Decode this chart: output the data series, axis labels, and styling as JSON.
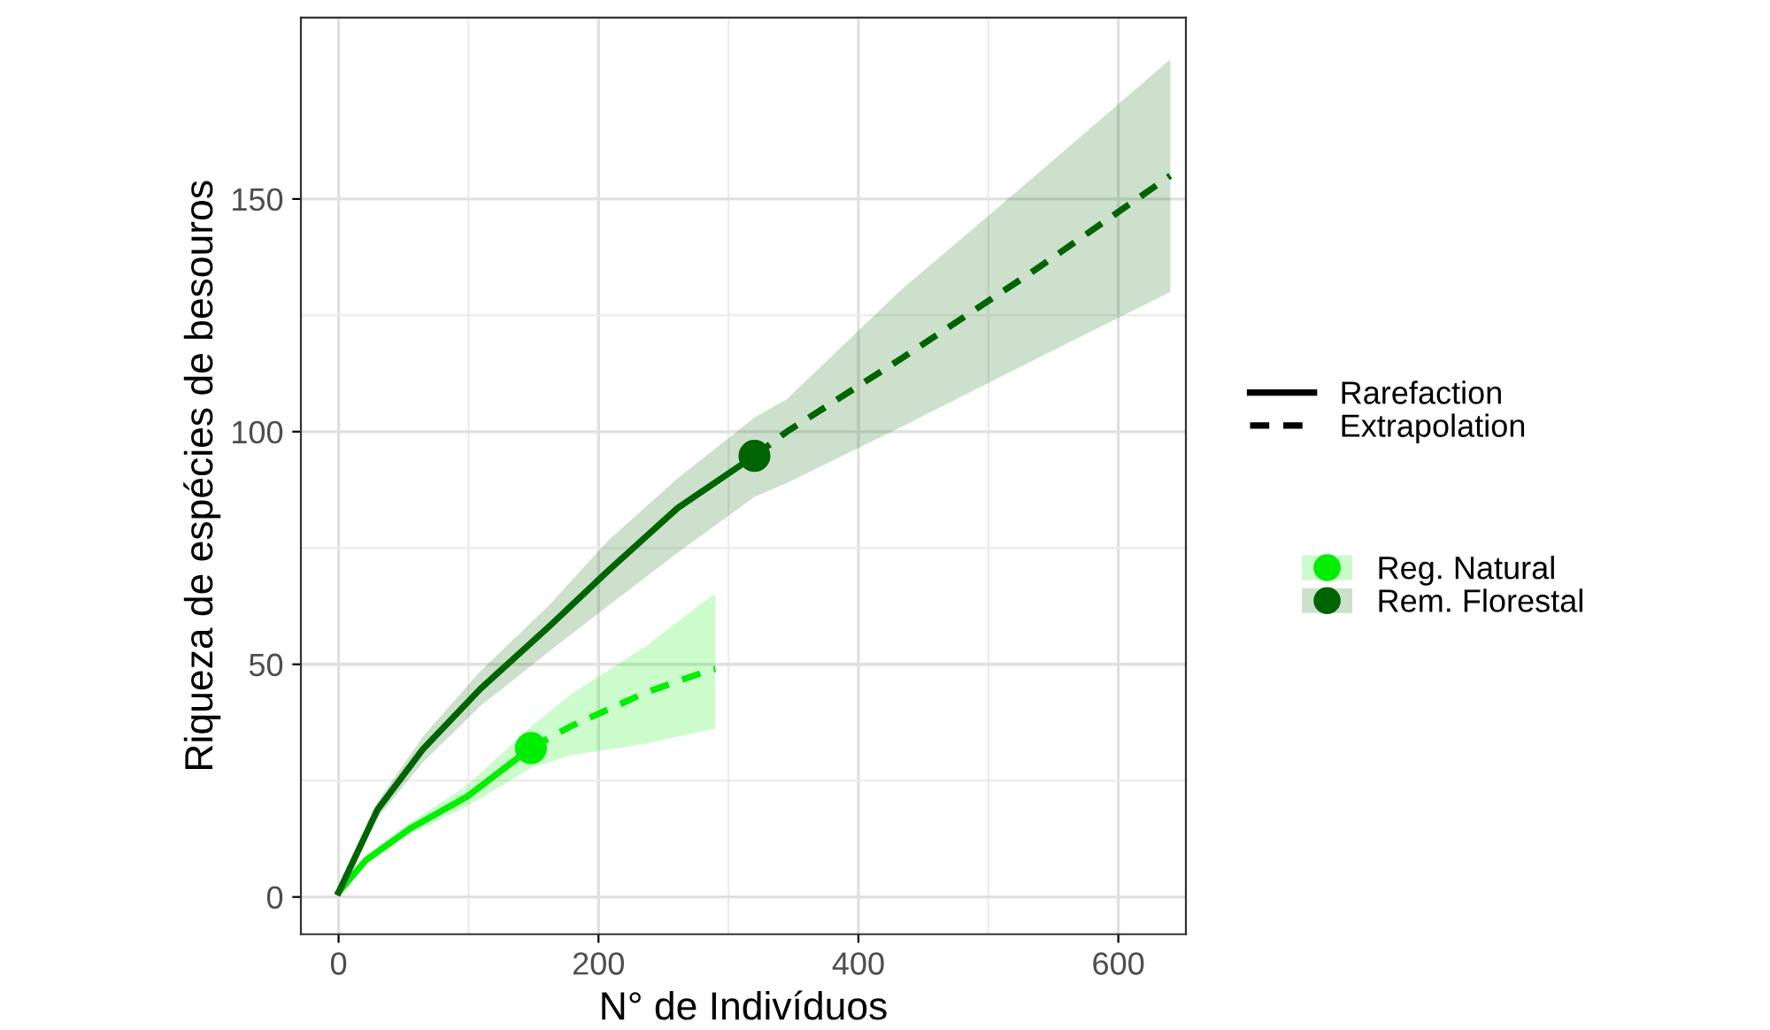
{
  "chart_data": {
    "type": "line",
    "xlabel": "N° de Indivíduos",
    "ylabel": "Riqueza de espécies de besouros",
    "xlim": [
      -29,
      652
    ],
    "ylim": [
      -8,
      189
    ],
    "xticks": [
      0,
      200,
      400,
      600
    ],
    "yticks": [
      0,
      50,
      100,
      150
    ],
    "grid": true,
    "legend": "right",
    "series": [
      {
        "name": "Rarefaction",
        "line_style": "solid",
        "color": "#000000"
      },
      {
        "name": "Extrapolation",
        "line_style": "dashed",
        "color": "#000000"
      },
      {
        "name": "Reg. Natural",
        "line_style": "solid",
        "color": "#00ee00",
        "x": [
          0,
          21,
          55,
          99,
          148
        ],
        "values": [
          1,
          7.9,
          14.7,
          21.6,
          32
        ],
        "lower": [
          1,
          7,
          13.5,
          19.5,
          27.7
        ],
        "upper": [
          1,
          9,
          16,
          24,
          36.6
        ]
      },
      {
        "line_style": "dashed",
        "color": "#00ee00",
        "x": [
          148,
          178,
          237,
          286,
          290
        ],
        "values": [
          32,
          36.6,
          44,
          48.8,
          49
        ],
        "lower": [
          27.7,
          30.4,
          33,
          36,
          36
        ],
        "upper": [
          36.6,
          43.4,
          54,
          64.5,
          65
        ]
      },
      {
        "type": "scatter",
        "marker": "circle",
        "color": "#00ee00",
        "x": [
          148
        ],
        "values": [
          32
        ]
      },
      {
        "name": "Rem. Florestal",
        "line_style": "solid",
        "color": "#006400",
        "x": [
          0,
          30,
          65,
          109,
          163,
          207,
          261,
          320
        ],
        "values": [
          1,
          18.8,
          31.8,
          44.7,
          58.4,
          70,
          83.6,
          94.8
        ],
        "lower": [
          1,
          17,
          29,
          41,
          53,
          62.5,
          74,
          86
        ],
        "upper": [
          1,
          20.5,
          34.5,
          48.5,
          63,
          76.5,
          90,
          103
        ]
      },
      {
        "line_style": "dashed",
        "color": "#006400",
        "x": [
          320,
          345,
          433,
          532,
          640
        ],
        "values": [
          94.8,
          100,
          115.7,
          134,
          155
        ],
        "lower": [
          86,
          89,
          101,
          115,
          130
        ],
        "upper": [
          103,
          107,
          130.5,
          154,
          180
        ]
      },
      {
        "type": "scatter",
        "marker": "circle",
        "color": "#006400",
        "x": [
          320
        ],
        "values": [
          94.8
        ]
      }
    ]
  }
}
